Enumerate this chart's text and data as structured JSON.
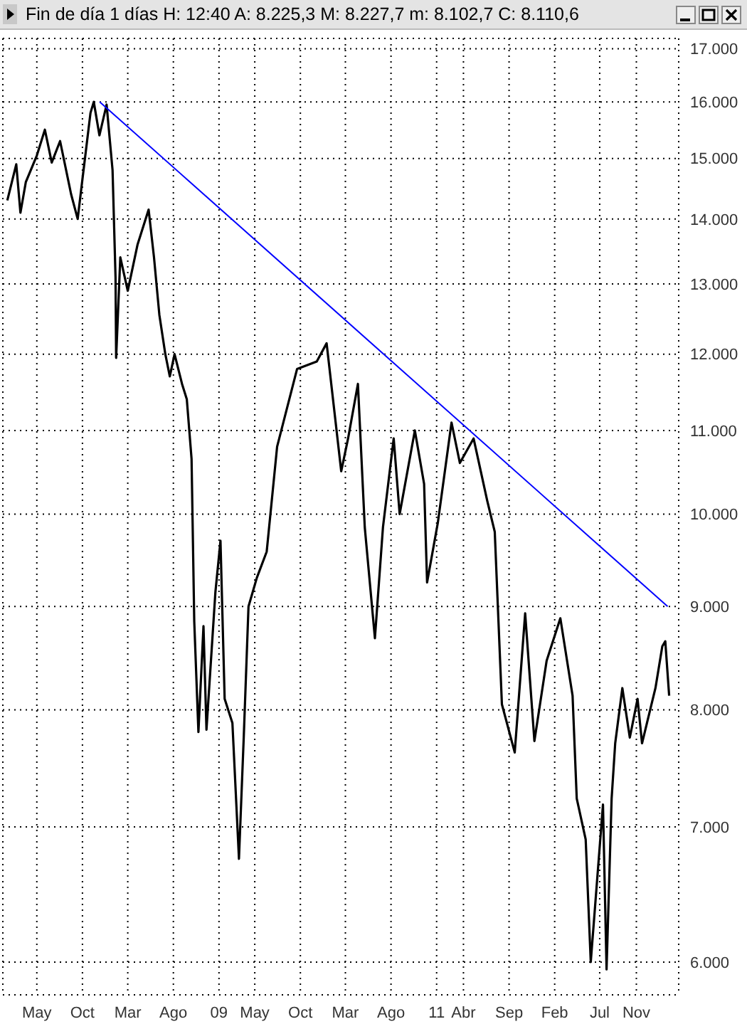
{
  "chart_data": {
    "type": "line",
    "title": "Fin de día 1 días  H: 12:40  A: 8.225,3  M: 8.227,7  m: 8.102,7  C: 8.110,6",
    "log": "y",
    "grid": true,
    "xlim": [
      "2007-01-07",
      "2013-03-23"
    ],
    "xticks": [
      {
        "value": "2007-05-01",
        "label": "May"
      },
      {
        "value": "2007-10-01",
        "label": "Oct"
      },
      {
        "value": "2008-03-01",
        "label": "Mar"
      },
      {
        "value": "2008-08-01",
        "label": "Ago"
      },
      {
        "value": "2009-01-01",
        "label": "09"
      },
      {
        "value": "2009-05-01",
        "label": "May"
      },
      {
        "value": "2009-10-01",
        "label": "Oct"
      },
      {
        "value": "2010-03-01",
        "label": "Mar"
      },
      {
        "value": "2010-08-01",
        "label": "Ago"
      },
      {
        "value": "2011-01-01",
        "label": "11"
      },
      {
        "value": "2011-04-01",
        "label": "Abr"
      },
      {
        "value": "2011-09-01",
        "label": "Sep"
      },
      {
        "value": "2012-02-01",
        "label": "Feb"
      },
      {
        "value": "2012-07-01",
        "label": "Jul"
      },
      {
        "value": "2012-11-01",
        "label": "Nov"
      }
    ],
    "ylim": [
      5780,
      17200
    ],
    "yticks": [
      {
        "value": 6000,
        "label": "6.000"
      },
      {
        "value": 7000,
        "label": "7.000"
      },
      {
        "value": 8000,
        "label": "8.000"
      },
      {
        "value": 9000,
        "label": "9.000"
      },
      {
        "value": 10000,
        "label": "10.000"
      },
      {
        "value": 11000,
        "label": "11.000"
      },
      {
        "value": 12000,
        "label": "12.000"
      },
      {
        "value": 13000,
        "label": "13.000"
      },
      {
        "value": 14000,
        "label": "14.000"
      },
      {
        "value": 15000,
        "label": "15.000"
      },
      {
        "value": 16000,
        "label": "16.000"
      },
      {
        "value": 17000,
        "label": "17.000"
      }
    ],
    "series": [
      {
        "color": "#000000",
        "x": [
          "2007-01-22",
          "2007-02-21",
          "2007-03-07",
          "2007-03-25",
          "2007-05-01",
          "2007-05-28",
          "2007-06-20",
          "2007-07-18",
          "2007-08-24",
          "2007-09-15",
          "2007-10-01",
          "2007-10-28",
          "2007-11-08",
          "2007-11-27",
          "2007-12-21",
          "2008-01-10",
          "2008-01-20",
          "2008-01-22",
          "2008-02-05",
          "2008-03-01",
          "2008-04-03",
          "2008-05-10",
          "2008-05-28",
          "2008-06-15",
          "2008-07-05",
          "2008-07-20",
          "2008-08-05",
          "2008-08-30",
          "2008-09-15",
          "2008-10-01",
          "2008-10-10",
          "2008-10-24",
          "2008-11-10",
          "2008-11-20",
          "2008-12-20",
          "2009-01-06",
          "2009-01-20",
          "2009-02-15",
          "2009-03-09",
          "2009-03-25",
          "2009-04-10",
          "2009-05-08",
          "2009-06-10",
          "2009-07-15",
          "2009-09-20",
          "2009-11-25",
          "2009-12-28",
          "2010-02-15",
          "2010-03-10",
          "2010-04-12",
          "2010-05-05",
          "2010-06-08",
          "2010-07-05",
          "2010-08-10",
          "2010-08-30",
          "2010-10-20",
          "2010-11-20",
          "2010-11-30",
          "2011-01-05",
          "2011-02-20",
          "2011-03-20",
          "2011-05-05",
          "2011-06-20",
          "2011-07-15",
          "2011-08-08",
          "2011-09-20",
          "2011-10-25",
          "2011-11-25",
          "2012-01-05",
          "2012-02-20",
          "2012-04-01",
          "2012-04-15",
          "2012-05-15",
          "2012-06-01",
          "2012-07-12",
          "2012-07-24",
          "2012-08-10",
          "2012-08-22",
          "2012-09-15",
          "2012-10-10",
          "2012-11-05",
          "2012-11-20",
          "2013-01-04",
          "2013-01-27",
          "2013-02-06",
          "2013-02-19"
        ],
        "values": [
          14300,
          14900,
          14100,
          14600,
          15050,
          15500,
          14930,
          15300,
          14400,
          14000,
          14650,
          15800,
          16000,
          15400,
          15950,
          14800,
          13100,
          11950,
          13400,
          12900,
          13600,
          14150,
          13400,
          12550,
          12000,
          11700,
          12000,
          11600,
          11400,
          10650,
          8850,
          7800,
          8800,
          7820,
          9150,
          9700,
          8100,
          7880,
          6750,
          7750,
          9000,
          9300,
          9580,
          10800,
          11800,
          11900,
          12150,
          10500,
          10900,
          11600,
          9850,
          8680,
          9850,
          10900,
          10000,
          11000,
          10350,
          9250,
          9900,
          11100,
          10600,
          10900,
          10150,
          9800,
          8050,
          7620,
          8930,
          7720,
          8460,
          8880,
          8130,
          7230,
          6900,
          6000,
          7180,
          5950,
          7230,
          7700,
          8200,
          7750,
          8100,
          7700,
          8200,
          8600,
          8650,
          8130
        ]
      },
      {
        "type": "line",
        "color": "#0000ff",
        "x": [
          "2007-11-28",
          "2013-02-14"
        ],
        "values": [
          16000,
          9000
        ]
      }
    ]
  }
}
